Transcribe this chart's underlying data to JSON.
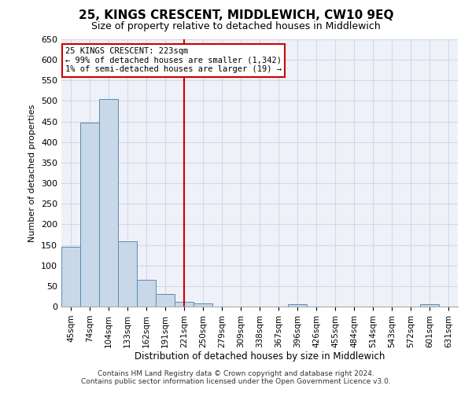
{
  "title": "25, KINGS CRESCENT, MIDDLEWICH, CW10 9EQ",
  "subtitle": "Size of property relative to detached houses in Middlewich",
  "xlabel": "Distribution of detached houses by size in Middlewich",
  "ylabel": "Number of detached properties",
  "bar_color": "#c8d8e8",
  "bar_edge_color": "#5b8ab0",
  "categories": [
    "45sqm",
    "74sqm",
    "104sqm",
    "133sqm",
    "162sqm",
    "191sqm",
    "221sqm",
    "250sqm",
    "279sqm",
    "309sqm",
    "338sqm",
    "367sqm",
    "396sqm",
    "426sqm",
    "455sqm",
    "484sqm",
    "514sqm",
    "543sqm",
    "572sqm",
    "601sqm",
    "631sqm"
  ],
  "values": [
    145,
    447,
    505,
    158,
    65,
    30,
    12,
    8,
    0,
    0,
    0,
    0,
    5,
    0,
    0,
    0,
    0,
    0,
    0,
    5,
    0
  ],
  "ylim": [
    0,
    650
  ],
  "yticks": [
    0,
    50,
    100,
    150,
    200,
    250,
    300,
    350,
    400,
    450,
    500,
    550,
    600,
    650
  ],
  "property_line_x": 6,
  "property_line_label": "25 KINGS CRESCENT: 223sqm",
  "annotation_line1": "← 99% of detached houses are smaller (1,342)",
  "annotation_line2": "1% of semi-detached houses are larger (19) →",
  "footnote1": "Contains HM Land Registry data © Crown copyright and database right 2024.",
  "footnote2": "Contains public sector information licensed under the Open Government Licence v3.0.",
  "grid_color": "#d0d8e8",
  "annotation_box_color": "#ffffff",
  "annotation_box_edge": "#cc0000",
  "vline_color": "#cc0000",
  "background_color": "#eef2f8"
}
